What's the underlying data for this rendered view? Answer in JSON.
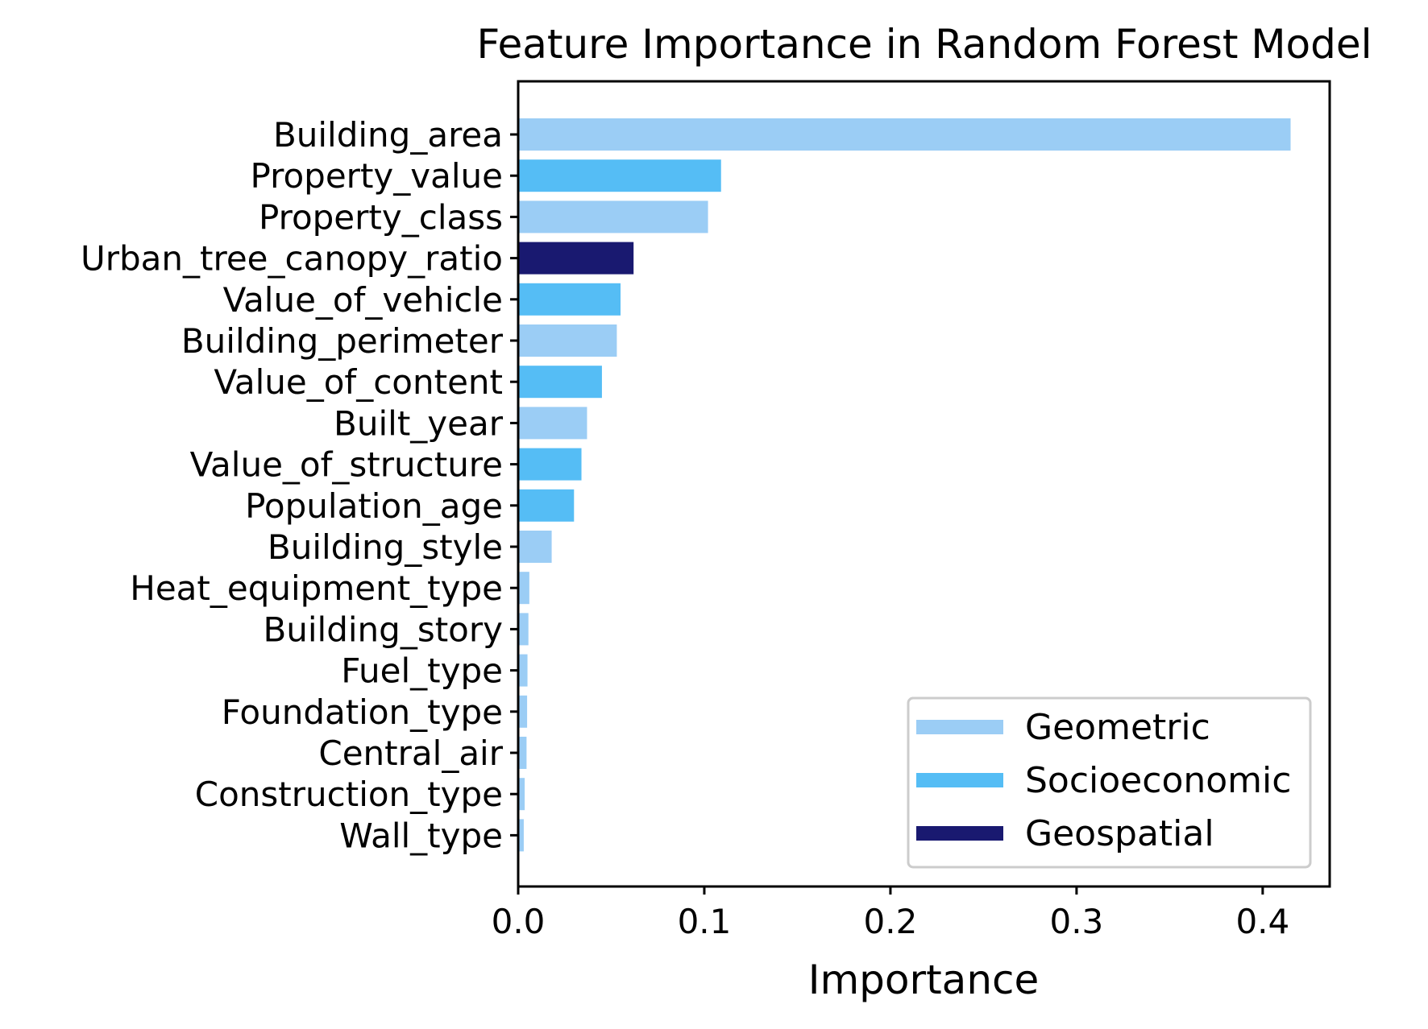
{
  "chart_data": {
    "type": "bar",
    "orientation": "horizontal",
    "title": "Feature Importance in Random Forest Model",
    "xlabel": "Importance",
    "ylabel": "",
    "xlim": [
      0,
      0.436
    ],
    "xticks": [
      "0.0",
      "0.1",
      "0.2",
      "0.3",
      "0.4"
    ],
    "grid": false,
    "legend_position": "lower-right",
    "groups": [
      {
        "name": "Geometric",
        "color": "#9bcdf5"
      },
      {
        "name": "Socioeconomic",
        "color": "#55bdf5"
      },
      {
        "name": "Geospatial",
        "color": "#191970"
      }
    ],
    "bars": [
      {
        "label": "Building_area",
        "value": 0.415,
        "group": "Geometric"
      },
      {
        "label": "Property_value",
        "value": 0.109,
        "group": "Socioeconomic"
      },
      {
        "label": "Property_class",
        "value": 0.102,
        "group": "Geometric"
      },
      {
        "label": "Urban_tree_canopy_ratio",
        "value": 0.062,
        "group": "Geospatial"
      },
      {
        "label": "Value_of_vehicle",
        "value": 0.055,
        "group": "Socioeconomic"
      },
      {
        "label": "Building_perimeter",
        "value": 0.053,
        "group": "Geometric"
      },
      {
        "label": "Value_of_content",
        "value": 0.045,
        "group": "Socioeconomic"
      },
      {
        "label": "Built_year",
        "value": 0.037,
        "group": "Geometric"
      },
      {
        "label": "Value_of_structure",
        "value": 0.034,
        "group": "Socioeconomic"
      },
      {
        "label": "Population_age",
        "value": 0.03,
        "group": "Socioeconomic"
      },
      {
        "label": "Building_style",
        "value": 0.018,
        "group": "Geometric"
      },
      {
        "label": "Heat_equipment_type",
        "value": 0.006,
        "group": "Geometric"
      },
      {
        "label": "Building_story",
        "value": 0.0055,
        "group": "Geometric"
      },
      {
        "label": "Fuel_type",
        "value": 0.005,
        "group": "Geometric"
      },
      {
        "label": "Foundation_type",
        "value": 0.0048,
        "group": "Geometric"
      },
      {
        "label": "Central_air",
        "value": 0.0045,
        "group": "Geometric"
      },
      {
        "label": "Construction_type",
        "value": 0.0035,
        "group": "Geometric"
      },
      {
        "label": "Wall_type",
        "value": 0.003,
        "group": "Geometric"
      }
    ]
  }
}
